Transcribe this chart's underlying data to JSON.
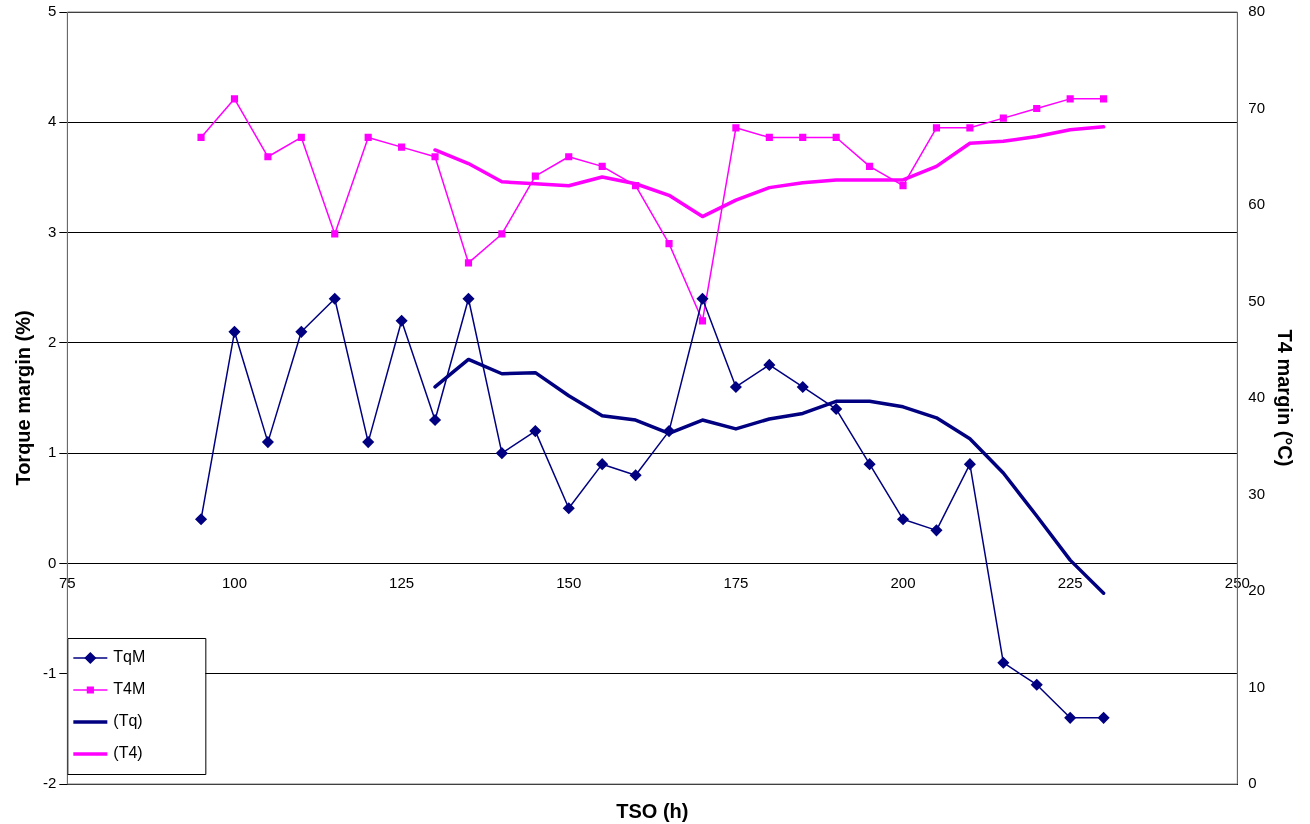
{
  "chart_data": {
    "type": "line",
    "xlabel": "TSO (h)",
    "ylabel": "Torque margin (%)",
    "y2label": "T4 margin (°C)",
    "xlim": [
      75,
      250
    ],
    "xticks": [
      75,
      100,
      125,
      150,
      175,
      200,
      225,
      250
    ],
    "ylim": [
      -2,
      5
    ],
    "yticks": [
      -2,
      -1,
      0,
      1,
      2,
      3,
      4,
      5
    ],
    "y2lim": [
      0,
      80
    ],
    "y2ticks": [
      0,
      10,
      20,
      30,
      40,
      50,
      60,
      70,
      80
    ],
    "grid": "y",
    "legend": "bottom left",
    "series": [
      {
        "name": "TqM",
        "color": "#000080",
        "marker": "diamond",
        "x": [
          95,
          100,
          105,
          110,
          115,
          120,
          125,
          130,
          135,
          140,
          145,
          150,
          155,
          160,
          165,
          170,
          175,
          180,
          185,
          190,
          195,
          200,
          205,
          210,
          215,
          220,
          225,
          230
        ],
        "values": [
          0.4,
          2.1,
          1.1,
          2.1,
          2.4,
          1.1,
          2.2,
          1.3,
          2.4,
          1.0,
          1.2,
          0.5,
          0.9,
          0.8,
          1.2,
          2.4,
          1.6,
          1.8,
          1.6,
          1.4,
          0.9,
          0.4,
          0.3,
          0.9,
          -0.9,
          -1.1,
          -1.4,
          -1.4
        ]
      },
      {
        "name": "T4M",
        "color": "#ff00ff",
        "marker": "square",
        "axis": "y2",
        "x": [
          95,
          100,
          105,
          110,
          115,
          120,
          125,
          130,
          135,
          140,
          145,
          150,
          155,
          160,
          165,
          170,
          175,
          180,
          185,
          190,
          195,
          200,
          205,
          210,
          215,
          220,
          225,
          230
        ],
        "values": [
          67,
          71,
          65,
          67,
          57,
          67,
          66,
          65,
          54,
          57,
          63,
          65,
          64,
          62,
          56,
          48,
          68,
          67,
          67,
          67,
          64,
          62,
          68,
          68,
          69,
          70,
          71,
          71
        ]
      },
      {
        "name": "(Tq)",
        "color": "#000080",
        "marker": "none",
        "x": [
          130,
          135,
          140,
          145,
          150,
          155,
          160,
          165,
          170,
          175,
          180,
          185,
          190,
          195,
          200,
          205,
          210,
          215,
          220,
          225,
          230
        ],
        "values": [
          1.6,
          1.85,
          1.72,
          1.73,
          1.52,
          1.34,
          1.3,
          1.18,
          1.3,
          1.22,
          1.31,
          1.36,
          1.47,
          1.47,
          1.42,
          1.32,
          1.13,
          0.82,
          0.43,
          0.03,
          -0.27
        ]
      },
      {
        "name": "(T4)",
        "color": "#ff00ff",
        "marker": "none",
        "axis": "y2",
        "x": [
          130,
          135,
          140,
          145,
          150,
          155,
          160,
          165,
          170,
          175,
          180,
          185,
          190,
          195,
          200,
          205,
          210,
          215,
          220,
          225,
          230
        ],
        "values": [
          65.7,
          64.3,
          62.4,
          62.2,
          62.0,
          62.9,
          62.2,
          61.0,
          58.8,
          60.5,
          61.8,
          62.3,
          62.6,
          62.6,
          62.6,
          64.0,
          66.4,
          66.6,
          67.1,
          67.8,
          68.1
        ]
      }
    ]
  }
}
